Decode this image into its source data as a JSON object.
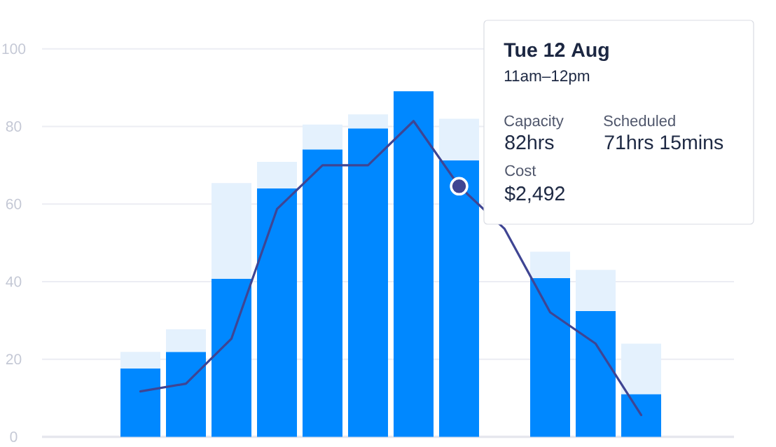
{
  "chart_data": {
    "type": "bar",
    "stacked": true,
    "categories": [
      null,
      null,
      null,
      null,
      null,
      null,
      null,
      null,
      null,
      null,
      null,
      null
    ],
    "series": [
      {
        "color": "#0088ff",
        "values": [
          17.6,
          21.9,
          40.7,
          64.0,
          74.1,
          79.5,
          89.1,
          71.25,
          null,
          40.9,
          32.4,
          11.0
        ]
      },
      {
        "color": "#e4f1fd",
        "values": [
          4.3,
          5.8,
          24.7,
          6.9,
          6.4,
          3.6,
          null,
          10.75,
          null,
          6.8,
          10.6,
          13.0
        ]
      },
      {
        "type": "line",
        "color": "#3f4593",
        "values": [
          11.7,
          13.7,
          25.3,
          58.7,
          70.0,
          70.0,
          81.4,
          64.6,
          53.6,
          32.1,
          24.0,
          5.6
        ]
      },
      {
        "type": "scatter",
        "color": "#3f4593",
        "marker": "circle",
        "values": [
          null,
          null,
          null,
          null,
          null,
          null,
          null,
          64.6,
          null,
          null,
          null,
          null
        ]
      }
    ],
    "ylim": [
      0,
      100
    ],
    "yticks": [
      0,
      20,
      40,
      60,
      80,
      100
    ],
    "grid": "y",
    "annotations": [
      "Tue 12 Aug",
      "11am–12pm",
      "Capacity",
      "82hrs",
      "Scheduled",
      "71hrs 15mins",
      "Cost",
      "$2,492"
    ]
  }
}
